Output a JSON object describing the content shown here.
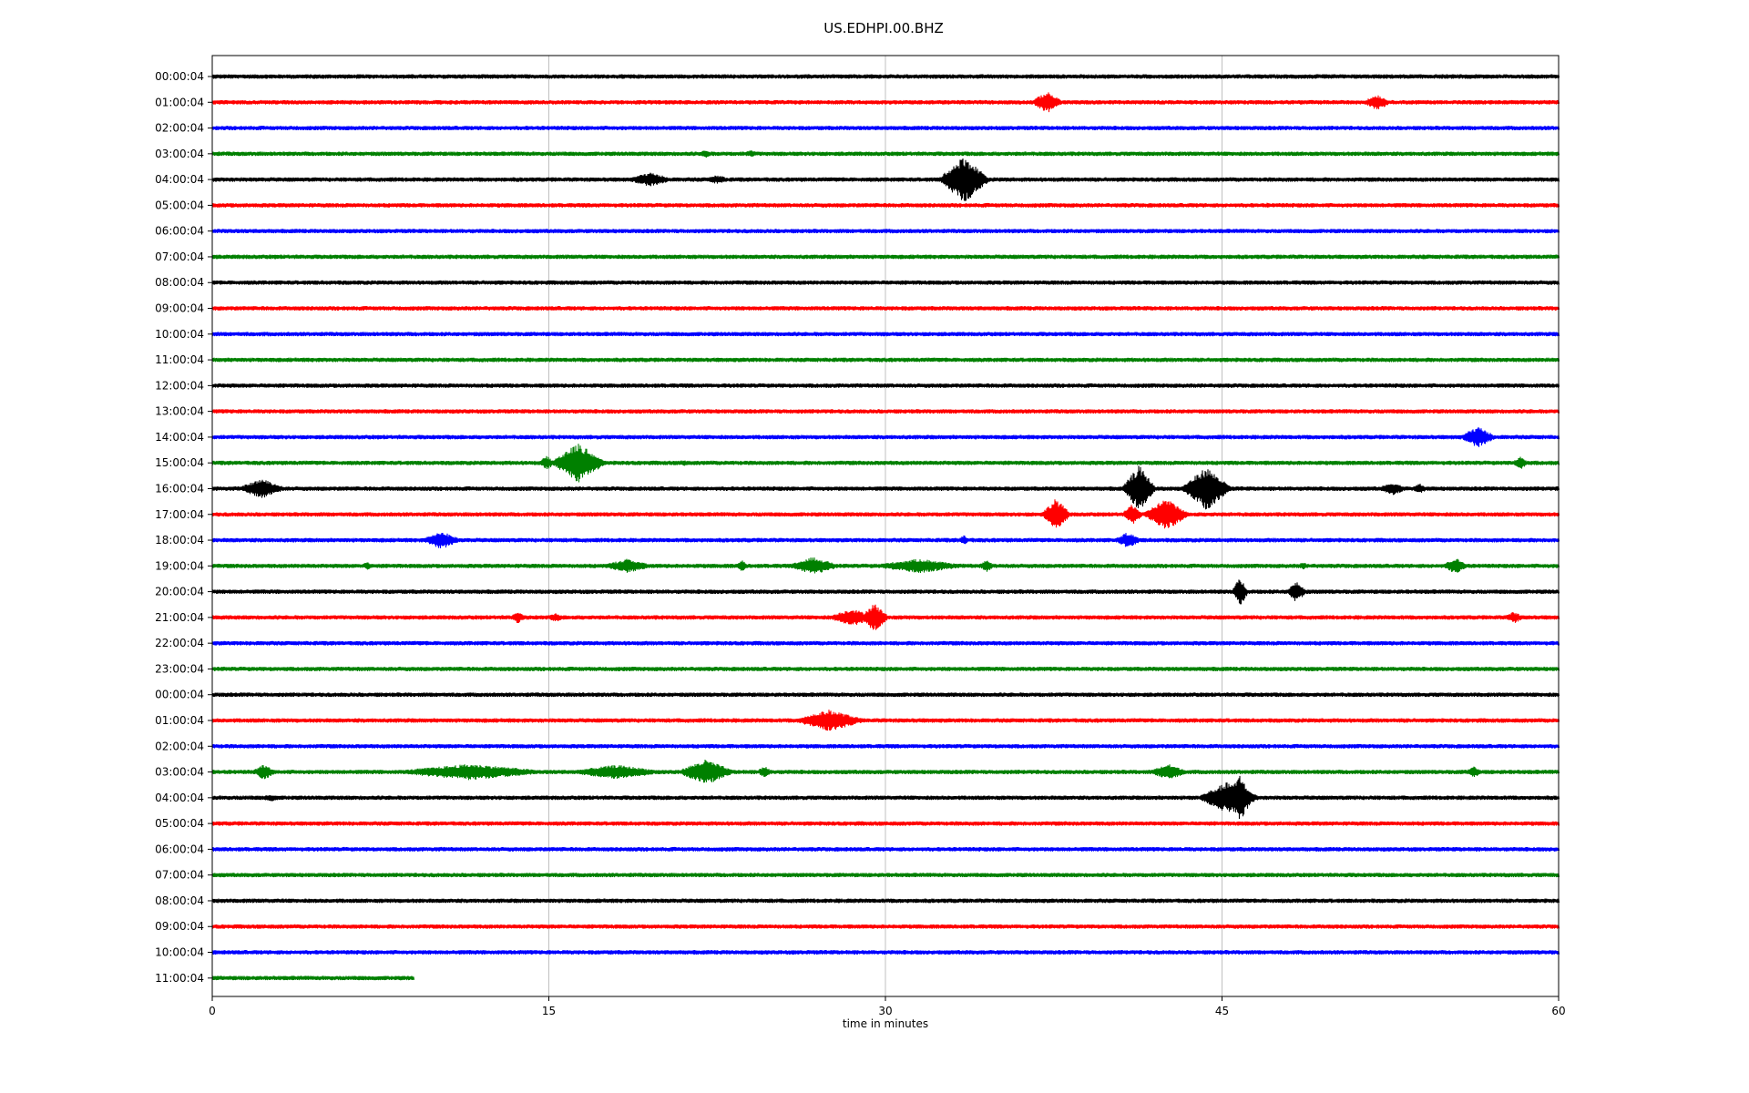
{
  "chart_data": {
    "type": "line",
    "title": "US.EDHPI.00.BHZ",
    "xlabel": "time in minutes",
    "ylabel": "",
    "xlim": [
      0,
      60
    ],
    "x_ticks": [
      "0",
      "15",
      "30",
      "45",
      "60"
    ],
    "x_tick_values": [
      0,
      15,
      30,
      45,
      60
    ],
    "grid": "vertical",
    "colors": [
      "#000000",
      "#ff0000",
      "#0000ff",
      "#008000"
    ],
    "rows": [
      {
        "label": "00:00:04",
        "events": []
      },
      {
        "label": "01:00:04",
        "events": [
          {
            "t": 37.2,
            "a": 12,
            "w": 0.8
          },
          {
            "t": 51.9,
            "a": 9,
            "w": 0.7
          }
        ]
      },
      {
        "label": "02:00:04",
        "events": []
      },
      {
        "label": "03:00:04",
        "events": [
          {
            "t": 22.0,
            "a": 5,
            "w": 0.4
          },
          {
            "t": 24.0,
            "a": 4,
            "w": 0.6
          }
        ]
      },
      {
        "label": "04:00:04",
        "events": [
          {
            "t": 19.5,
            "a": 8,
            "w": 1.2
          },
          {
            "t": 22.5,
            "a": 5,
            "w": 0.8
          },
          {
            "t": 33.5,
            "a": 26,
            "w": 1.2
          }
        ]
      },
      {
        "label": "05:00:04",
        "events": [
          {
            "t": 47.0,
            "a": 3,
            "w": 0.3
          }
        ]
      },
      {
        "label": "06:00:04",
        "events": []
      },
      {
        "label": "07:00:04",
        "events": [
          {
            "t": 54.0,
            "a": 3,
            "w": 0.3
          }
        ]
      },
      {
        "label": "08:00:04",
        "events": []
      },
      {
        "label": "09:00:04",
        "events": []
      },
      {
        "label": "10:00:04",
        "events": []
      },
      {
        "label": "11:00:04",
        "events": []
      },
      {
        "label": "12:00:04",
        "events": []
      },
      {
        "label": "13:00:04",
        "events": []
      },
      {
        "label": "14:00:04",
        "events": [
          {
            "t": 56.4,
            "a": 12,
            "w": 0.9
          }
        ]
      },
      {
        "label": "15:00:04",
        "events": [
          {
            "t": 14.9,
            "a": 8,
            "w": 0.4
          },
          {
            "t": 16.3,
            "a": 22,
            "w": 1.3
          },
          {
            "t": 21.0,
            "a": 4,
            "w": 0.3
          },
          {
            "t": 58.3,
            "a": 8,
            "w": 0.4
          }
        ]
      },
      {
        "label": "16:00:04",
        "events": [
          {
            "t": 2.2,
            "a": 11,
            "w": 1.2
          },
          {
            "t": 41.3,
            "a": 26,
            "w": 0.8
          },
          {
            "t": 44.3,
            "a": 24,
            "w": 1.2
          },
          {
            "t": 52.6,
            "a": 7,
            "w": 0.8
          },
          {
            "t": 53.8,
            "a": 6,
            "w": 0.4
          }
        ]
      },
      {
        "label": "17:00:04",
        "events": [
          {
            "t": 37.6,
            "a": 18,
            "w": 0.7
          },
          {
            "t": 41.0,
            "a": 12,
            "w": 0.5
          },
          {
            "t": 42.5,
            "a": 18,
            "w": 1.1
          }
        ]
      },
      {
        "label": "18:00:04",
        "events": [
          {
            "t": 10.2,
            "a": 10,
            "w": 1.0
          },
          {
            "t": 33.5,
            "a": 6,
            "w": 0.3
          },
          {
            "t": 40.8,
            "a": 9,
            "w": 0.7
          }
        ]
      },
      {
        "label": "19:00:04",
        "events": [
          {
            "t": 6.9,
            "a": 5,
            "w": 0.3
          },
          {
            "t": 18.5,
            "a": 8,
            "w": 1.3
          },
          {
            "t": 23.6,
            "a": 7,
            "w": 0.3
          },
          {
            "t": 26.8,
            "a": 10,
            "w": 1.3
          },
          {
            "t": 31.5,
            "a": 8,
            "w": 2.5
          },
          {
            "t": 34.5,
            "a": 7,
            "w": 0.4
          },
          {
            "t": 48.6,
            "a": 4,
            "w": 0.5
          },
          {
            "t": 55.4,
            "a": 9,
            "w": 0.7
          }
        ]
      },
      {
        "label": "20:00:04",
        "events": [
          {
            "t": 45.8,
            "a": 16,
            "w": 0.4
          },
          {
            "t": 48.3,
            "a": 12,
            "w": 0.5
          }
        ]
      },
      {
        "label": "21:00:04",
        "events": [
          {
            "t": 13.6,
            "a": 7,
            "w": 0.4
          },
          {
            "t": 15.3,
            "a": 5,
            "w": 0.5
          },
          {
            "t": 28.5,
            "a": 10,
            "w": 1.2
          },
          {
            "t": 29.5,
            "a": 16,
            "w": 0.7
          },
          {
            "t": 58.0,
            "a": 7,
            "w": 0.5
          }
        ]
      },
      {
        "label": "22:00:04",
        "events": []
      },
      {
        "label": "23:00:04",
        "events": []
      },
      {
        "label": "00:00:04",
        "events": [
          {
            "t": 16.5,
            "a": 3,
            "w": 0.3
          }
        ]
      },
      {
        "label": "01:00:04",
        "events": [
          {
            "t": 27.5,
            "a": 12,
            "w": 1.8
          }
        ]
      },
      {
        "label": "02:00:04",
        "events": []
      },
      {
        "label": "03:00:04",
        "events": [
          {
            "t": 2.3,
            "a": 9,
            "w": 0.6
          },
          {
            "t": 11.5,
            "a": 9,
            "w": 4.0
          },
          {
            "t": 18.0,
            "a": 8,
            "w": 2.5
          },
          {
            "t": 22.0,
            "a": 14,
            "w": 1.4
          },
          {
            "t": 24.6,
            "a": 7,
            "w": 0.4
          },
          {
            "t": 42.6,
            "a": 9,
            "w": 1.0
          },
          {
            "t": 56.2,
            "a": 7,
            "w": 0.4
          }
        ]
      },
      {
        "label": "04:00:04",
        "events": [
          {
            "t": 2.6,
            "a": 4,
            "w": 0.8
          },
          {
            "t": 45.3,
            "a": 18,
            "w": 1.5
          },
          {
            "t": 45.8,
            "a": 26,
            "w": 0.6
          }
        ]
      },
      {
        "label": "05:00:04",
        "events": []
      },
      {
        "label": "06:00:04",
        "events": []
      },
      {
        "label": "07:00:04",
        "events": []
      },
      {
        "label": "08:00:04",
        "events": []
      },
      {
        "label": "09:00:04",
        "events": []
      },
      {
        "label": "10:00:04",
        "events": []
      },
      {
        "label": "11:00:04",
        "events": [],
        "end": 9.0
      }
    ]
  }
}
